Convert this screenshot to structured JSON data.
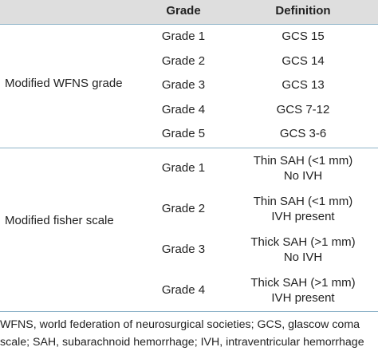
{
  "table": {
    "headers": {
      "category": "",
      "grade": "Grade",
      "definition": "Definition"
    },
    "wfns": {
      "label": "Modified WFNS grade",
      "rows": [
        {
          "grade": "Grade 1",
          "definition": "GCS 15"
        },
        {
          "grade": "Grade 2",
          "definition": "GCS 14"
        },
        {
          "grade": "Grade 3",
          "definition": "GCS 13"
        },
        {
          "grade": "Grade 4",
          "definition": "GCS 7-12"
        },
        {
          "grade": "Grade 5",
          "definition": "GCS 3-6"
        }
      ]
    },
    "fisher": {
      "label": "Modified fisher scale",
      "rows": [
        {
          "grade": "Grade 1",
          "def_line1": "Thin SAH (<1 mm)",
          "def_line2": "No IVH"
        },
        {
          "grade": "Grade 2",
          "def_line1": "Thin SAH (<1 mm)",
          "def_line2": "IVH present"
        },
        {
          "grade": "Grade 3",
          "def_line1": "Thick SAH (>1 mm)",
          "def_line2": "No IVH"
        },
        {
          "grade": "Grade 4",
          "def_line1": "Thick SAH (>1 mm)",
          "def_line2": "IVH present"
        }
      ]
    }
  },
  "footnote": "WFNS, world federation of neurosurgical societies; GCS, glascow coma scale; SAH, subarachnoid hemorrhage; IVH, intraventricular hemorrhage",
  "colors": {
    "header_bg": "#dedede",
    "rule": "#8fb4c9",
    "text": "#222222"
  }
}
